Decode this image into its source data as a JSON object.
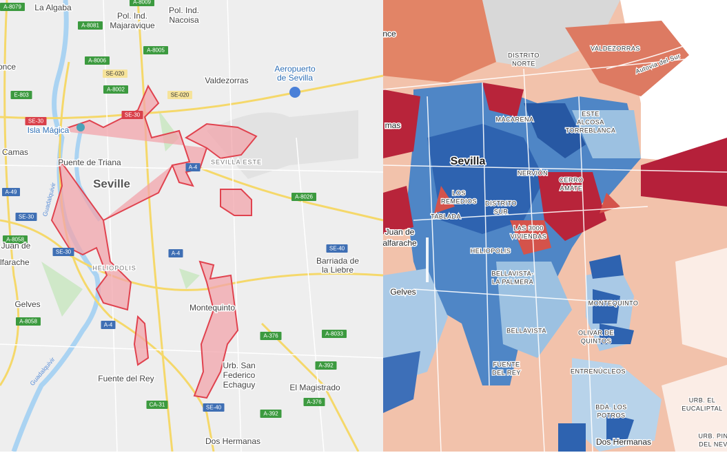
{
  "left_map": {
    "road_labels": [
      "A-8079",
      "A-8009",
      "A-8081",
      "A-8006",
      "A-8005",
      "SE-020",
      "A-8002",
      "SE-020",
      "E-803",
      "SE-30",
      "SE-30",
      "A-4",
      "A-49",
      "SE-30",
      "A-8026",
      "A-8058",
      "SE-30",
      "A-4",
      "SE-40",
      "A-8058",
      "A-4",
      "A-376",
      "A-8033",
      "A-392",
      "CA-31",
      "SE-40",
      "A-376",
      "A-392"
    ],
    "place_labels": [
      [
        "La Algaba"
      ],
      [
        "Pol. Ind.",
        "Majaravique"
      ],
      [
        "Pol. Ind.",
        "Nacoisa"
      ],
      [
        "Valdezorras"
      ],
      [
        "Aeropuerto",
        "de Sevilla"
      ],
      [
        "once"
      ],
      [
        "Isla Mágica"
      ],
      [
        "Camas"
      ],
      [
        "Puente de Triana"
      ],
      [
        "Seville"
      ],
      [
        "SEVILLA ESTE"
      ],
      [
        "n Juan de",
        "alfarache"
      ],
      [
        "HELIOPOLIS"
      ],
      [
        "Barriada de",
        "la Liebre"
      ],
      [
        "Gelves"
      ],
      [
        "Montequinto"
      ],
      [
        "Urb. San",
        "Federico",
        "Echaguy"
      ],
      [
        "Fuente del Rey"
      ],
      [
        "El Magistrado"
      ],
      [
        "Dos Hermanas"
      ],
      [
        "Guadalquivir"
      ],
      [
        "Guadalquivir"
      ]
    ]
  },
  "right_map": {
    "place_labels": [
      [
        "nce"
      ],
      [
        "mas"
      ],
      [
        "VALDEZORRAS"
      ],
      [
        "DISTRITO",
        "NORTE"
      ],
      [
        "Autovia del Sur"
      ],
      [
        "MACARENA"
      ],
      [
        "ESTE",
        "ALCOSA",
        "TORREBLANCA"
      ],
      [
        "Sevilla"
      ],
      [
        "NERVIÓN"
      ],
      [
        "CERRO",
        "AMATE"
      ],
      [
        "LOS",
        "REMEDIOS"
      ],
      [
        "DISTRITO",
        "SUR"
      ],
      [
        "TABLADA"
      ],
      [
        "LAS 3000",
        "VIVIENDAS"
      ],
      [
        "Juan de",
        "alfarache"
      ],
      [
        "HELIOPOLIS"
      ],
      [
        "BELLAVISTA-",
        "LA PALMERA"
      ],
      [
        "Gelves"
      ],
      [
        "MONTEQUINTO"
      ],
      [
        "OLIVAR DE",
        "QUINTOS"
      ],
      [
        "BELLAVISTA"
      ],
      [
        "FUENTE",
        "DEL REY"
      ],
      [
        "ENTRENÚCLEOS"
      ],
      [
        "BDA. LOS",
        "POTROS"
      ],
      [
        "URB. EL",
        "EUCALIPTAL"
      ],
      [
        "Dos Hermanas"
      ],
      [
        "URB. PIN",
        "DEL NEV"
      ]
    ]
  }
}
